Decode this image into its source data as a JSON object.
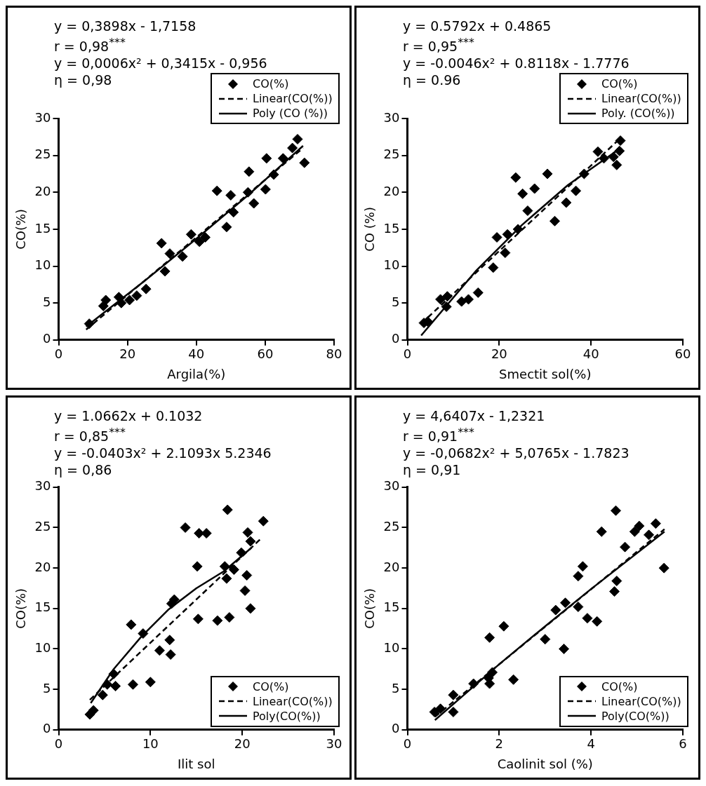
{
  "chart_data": [
    {
      "type": "scatter",
      "xlabel": "Argila(%)",
      "ylabel": "CO(%)",
      "annotations": [
        "y = 0,3898x - 1,7158",
        "r = 0,98$^{***}$",
        "y = 0,0006x² + 0,3415x - 0,956",
        "η = 0,98"
      ],
      "xlim": [
        0,
        80
      ],
      "xticks": [
        0,
        20,
        40,
        60,
        80
      ],
      "ylim": [
        0,
        30
      ],
      "yticks": [
        0,
        5,
        10,
        15,
        20,
        25,
        30
      ],
      "legend": "top right",
      "series": [
        {
          "name": "CO(%)",
          "type": "scatter",
          "marker": "diamond",
          "color": "#000000",
          "x": [
            8.9,
            13.7,
            13,
            17.5,
            18.2,
            20.6,
            22.7,
            25.4,
            29.9,
            30.9,
            32.3,
            36,
            38.5,
            40.9,
            42.6,
            46,
            48.8,
            50,
            50.8,
            55.3,
            55,
            56.7,
            60.1,
            60.4,
            62.5,
            65.2,
            67.9,
            69.4,
            71.4
          ],
          "values": [
            2.2,
            5.4,
            4.6,
            5.8,
            5,
            5.4,
            6,
            6.9,
            13.1,
            9.3,
            11.7,
            11.3,
            14.3,
            13.3,
            13.9,
            20.2,
            15.3,
            19.6,
            17.3,
            22.8,
            20,
            18.5,
            20.4,
            24.6,
            22.4,
            24.6,
            26,
            27.2,
            24
          ]
        },
        {
          "name": "Linear(CO(%))",
          "type": "line",
          "marker": "none",
          "line_style": "dashed",
          "color": "#000000",
          "x": [
            8,
            71
          ],
          "values": [
            1.4,
            26.0
          ]
        },
        {
          "name": "Poly (CO (%))",
          "type": "line",
          "marker": "none",
          "line_style": "solid",
          "color": "#000000",
          "x": [
            8,
            25,
            40,
            55,
            71
          ],
          "values": [
            1.8,
            8.0,
            13.7,
            19.6,
            26.3
          ]
        }
      ]
    },
    {
      "type": "scatter",
      "xlabel": "Smectit sol(%)",
      "ylabel": "CO (%)",
      "annotations": [
        "y = 0.5792x + 0.4865",
        "r = 0,95$^{***}$",
        "y = -0.0046x² + 0.8118x - 1.7776",
        "η = 0.96"
      ],
      "xlim": [
        0,
        60
      ],
      "xticks": [
        0,
        20,
        40,
        60
      ],
      "ylim": [
        0,
        30
      ],
      "yticks": [
        0,
        5,
        10,
        15,
        20,
        25,
        30
      ],
      "legend": "top right",
      "series": [
        {
          "name": "CO(%)",
          "type": "scatter",
          "marker": "diamond",
          "color": "#000000",
          "x": [
            3.6,
            4.4,
            7.2,
            8.7,
            8.5,
            11.8,
            13.3,
            15.4,
            18.7,
            19.5,
            21.3,
            21.8,
            24.1,
            23.6,
            25.1,
            26.2,
            27.7,
            30.5,
            32.1,
            34.6,
            36.7,
            38.5,
            41.5,
            42.8,
            44.9,
            45.6,
            46.4,
            46.2
          ],
          "values": [
            2.3,
            2.5,
            5.5,
            5.9,
            4.5,
            5.2,
            5.5,
            6.4,
            9.8,
            13.9,
            11.8,
            14.3,
            15,
            22,
            19.8,
            17.5,
            20.5,
            22.5,
            16.1,
            18.6,
            20.2,
            22.5,
            25.5,
            24.6,
            24.8,
            23.7,
            27,
            25.6
          ]
        },
        {
          "name": "Linear(CO(%))",
          "type": "line",
          "marker": "none",
          "line_style": "dashed",
          "color": "#000000",
          "x": [
            3,
            46
          ],
          "values": [
            2.2,
            27.1
          ]
        },
        {
          "name": "Poly. (CO(%))",
          "type": "line",
          "marker": "none",
          "line_style": "solid",
          "color": "#000000",
          "x": [
            3,
            15,
            25,
            35,
            46
          ],
          "values": [
            0.6,
            9.4,
            15.6,
            21.0,
            25.8
          ]
        }
      ]
    },
    {
      "type": "scatter",
      "xlabel": "Ilit sol",
      "ylabel": "CO(%)",
      "annotations": [
        "y = 1.0662x + 0.1032",
        "r = 0,85$^{***}$",
        "y = -0.0403x² + 2.1093x 5.2346",
        "η = 0,86"
      ],
      "xlim": [
        0,
        30
      ],
      "xticks": [
        0,
        10,
        20,
        30
      ],
      "ylim": [
        0,
        30
      ],
      "yticks": [
        0,
        5,
        10,
        15,
        20,
        25,
        30
      ],
      "legend": "bottom right",
      "series": [
        {
          "name": "CO(%)",
          "type": "scatter",
          "marker": "diamond",
          "color": "#000000",
          "x": [
            3.4,
            3.8,
            4.8,
            5.3,
            6,
            6.2,
            7.9,
            8.1,
            9.2,
            10,
            11,
            12.1,
            12.2,
            12.3,
            12.6,
            13.8,
            15.1,
            15.2,
            15.3,
            16.1,
            17.3,
            18.1,
            18.3,
            18.4,
            18.6,
            19.1,
            19.9,
            20.3,
            20.5,
            20.6,
            20.9,
            22.3,
            20.9
          ],
          "values": [
            1.9,
            2.4,
            4.3,
            5.6,
            6.9,
            5.4,
            13,
            5.6,
            11.9,
            5.9,
            9.8,
            11.1,
            9.3,
            15.6,
            16.1,
            25,
            20.2,
            13.7,
            24.3,
            24.3,
            13.5,
            20.2,
            18.7,
            27.2,
            13.9,
            19.8,
            21.9,
            17.2,
            19.1,
            24.4,
            15,
            25.8,
            23.3
          ]
        },
        {
          "name": "Linear(CO(%))",
          "type": "line",
          "marker": "none",
          "line_style": "dashed",
          "color": "#000000",
          "x": [
            3.4,
            22
          ],
          "values": [
            3.7,
            23.6
          ]
        },
        {
          "name": "Poly(CO(%))",
          "type": "line",
          "marker": "none",
          "line_style": "solid",
          "color": "#000000",
          "x": [
            3.5,
            6,
            9,
            12,
            15,
            18,
            21
          ],
          "values": [
            3.3,
            7.5,
            11.5,
            14.9,
            17.5,
            19.6,
            22.5
          ]
        }
      ]
    },
    {
      "type": "scatter",
      "xlabel": "Caolinit sol (%)",
      "ylabel": "CO(%)",
      "annotations": [
        "y = 4,6407x - 1,2321",
        "r = 0,91$^{***}$",
        "y = -0,0682x² + 5,0765x - 1.7823",
        "η = 0,91"
      ],
      "xlim": [
        0,
        6
      ],
      "xticks": [
        0,
        2,
        4,
        6
      ],
      "ylim": [
        0,
        30
      ],
      "yticks": [
        0,
        5,
        10,
        15,
        20,
        25,
        30
      ],
      "legend": "bottom right",
      "series": [
        {
          "name": "CO(%)",
          "type": "scatter",
          "marker": "diamond",
          "color": "#000000",
          "x": [
            0.59,
            0.72,
            1.0,
            1.0,
            1.44,
            1.77,
            1.79,
            1.85,
            1.79,
            2.1,
            2.31,
            3.0,
            3.23,
            3.41,
            3.44,
            3.72,
            3.72,
            3.82,
            3.92,
            4.13,
            4.23,
            4.54,
            4.51,
            4.56,
            4.74,
            4.95,
            5.05,
            5.26,
            5.41,
            5.59
          ],
          "values": [
            2.2,
            2.6,
            2.2,
            4.3,
            5.7,
            6.4,
            5.7,
            7.1,
            11.4,
            12.8,
            6.2,
            11.2,
            14.8,
            10,
            15.7,
            15.2,
            19,
            20.2,
            13.8,
            13.4,
            24.5,
            27.1,
            17.1,
            18.4,
            22.6,
            24.5,
            25.2,
            24.1,
            25.5,
            20
          ]
        },
        {
          "name": "Linear(CO(%))",
          "type": "line",
          "marker": "none",
          "line_style": "dashed",
          "color": "#000000",
          "x": [
            0.6,
            5.6
          ],
          "values": [
            1.6,
            24.8
          ]
        },
        {
          "name": "Poly(CO(%))",
          "type": "line",
          "marker": "none",
          "line_style": "solid",
          "color": "#000000",
          "x": [
            0.6,
            2,
            3,
            4,
            5.6
          ],
          "values": [
            1.2,
            8.1,
            12.8,
            17.4,
            24.5
          ]
        }
      ]
    }
  ]
}
